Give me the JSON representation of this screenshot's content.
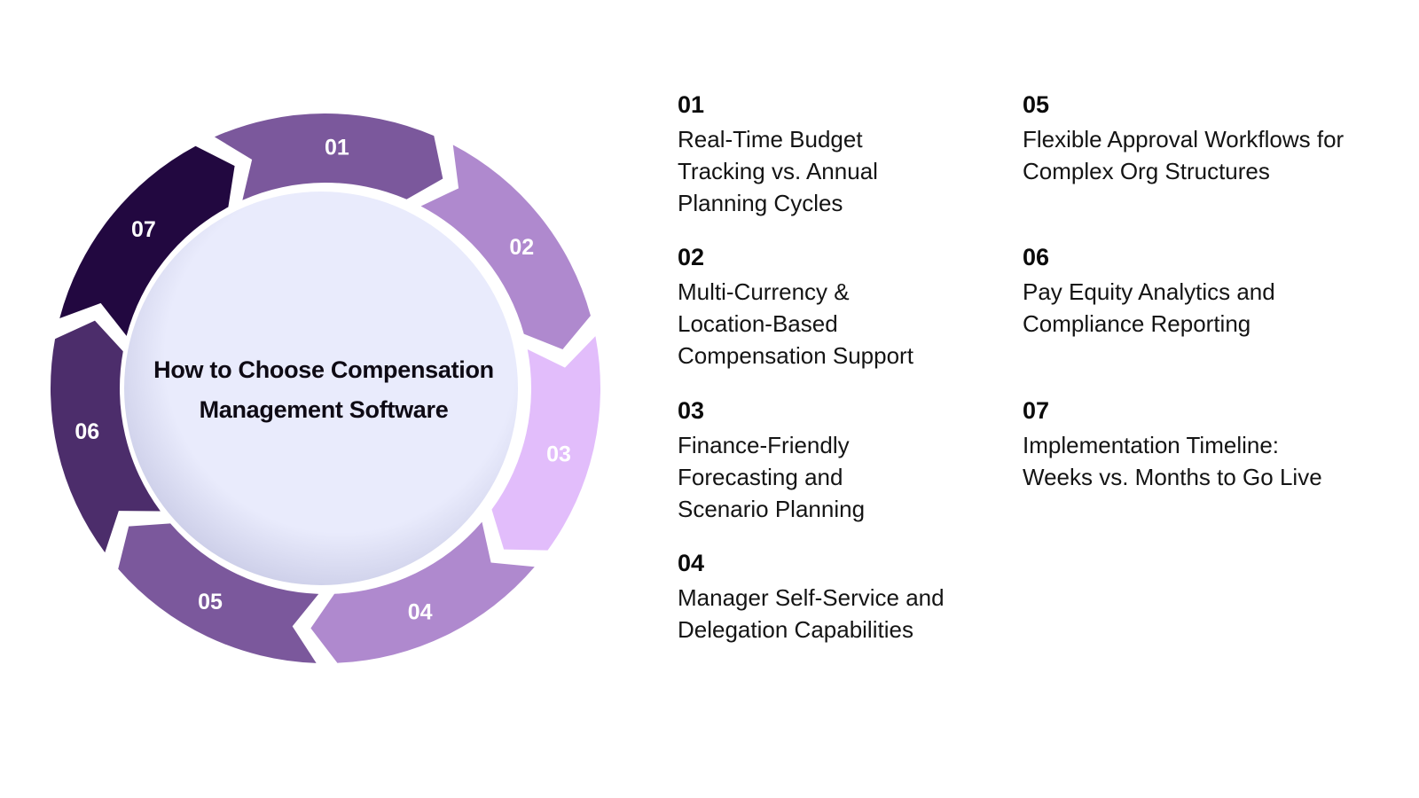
{
  "diagram": {
    "title": "How to Choose Compensation Management Software",
    "title_lines": [
      "How to Choose Compensation",
      "Management Software"
    ],
    "segments": [
      {
        "label": "01",
        "color": "#7b589c"
      },
      {
        "label": "02",
        "color": "#af89ce"
      },
      {
        "label": "03",
        "color": "#e2bdfb"
      },
      {
        "label": "04",
        "color": "#af89ce"
      },
      {
        "label": "05",
        "color": "#7b589c"
      },
      {
        "label": "06",
        "color": "#4c2d6b"
      },
      {
        "label": "07",
        "color": "#220840"
      }
    ],
    "center_color": "#e9ebfc"
  },
  "items": [
    {
      "num": "01",
      "text": "Real-Time Budget Tracking vs. Annual Planning Cycles"
    },
    {
      "num": "02",
      "text": "Multi-Currency & Location-Based Compensation Support"
    },
    {
      "num": "03",
      "text": "Finance-Friendly Forecasting and Scenario Planning"
    },
    {
      "num": "04",
      "text": "Manager Self-Service and Delegation Capabilities"
    },
    {
      "num": "05",
      "text": "Flexible Approval Workflows for Complex Org Structures"
    },
    {
      "num": "06",
      "text": "Pay Equity Analytics and Compliance Reporting"
    },
    {
      "num": "07",
      "text": "Implementation Timeline: Weeks vs. Months to Go Live"
    }
  ]
}
